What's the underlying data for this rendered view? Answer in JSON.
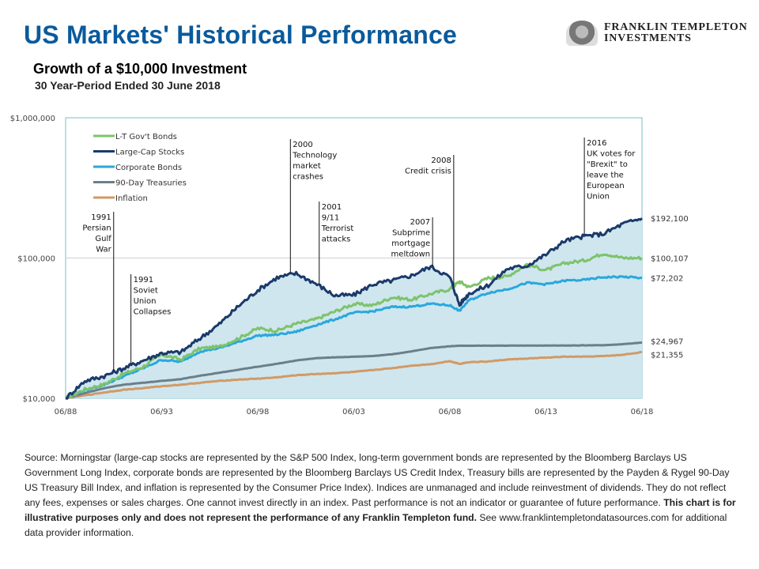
{
  "header": {
    "title": "US Markets' Historical Performance",
    "subtitle": "Growth  of a $10,000 Investment",
    "period": "30 Year-Period Ended 30 June 2018",
    "logo_line1": "FRANKLIN TEMPLETON",
    "logo_line2": "INVESTMENTS"
  },
  "chart_data": {
    "type": "line",
    "title": "Growth of a $10,000 Investment",
    "xlabel": "",
    "ylabel": "",
    "yscale": "log",
    "ylim": [
      10000,
      1000000
    ],
    "xlim": [
      1988.5,
      2018.5
    ],
    "yticks": [
      {
        "value": 10000,
        "label": "$10,000"
      },
      {
        "value": 100000,
        "label": "$100,000"
      },
      {
        "value": 1000000,
        "label": "$1,000,000"
      }
    ],
    "xticks": [
      {
        "value": 1988.5,
        "label": "06/88"
      },
      {
        "value": 1993.5,
        "label": "06/93"
      },
      {
        "value": 1998.5,
        "label": "06/98"
      },
      {
        "value": 2003.5,
        "label": "06/03"
      },
      {
        "value": 2008.5,
        "label": "06/08"
      },
      {
        "value": 2013.5,
        "label": "06/13"
      },
      {
        "value": 2018.5,
        "label": "06/18"
      }
    ],
    "grid": "horizontal at $100,000",
    "legend_position": "top-left",
    "shaded_area_under": "Large-Cap Stocks",
    "x": [
      1988.5,
      1989.5,
      1990.5,
      1991.5,
      1992.5,
      1993.5,
      1994.5,
      1995.5,
      1996.5,
      1997.5,
      1998.5,
      1999.5,
      2000.5,
      2001.5,
      2002.5,
      2003.5,
      2004.5,
      2005.5,
      2006.5,
      2007.5,
      2008.5,
      2009.0,
      2009.5,
      2010.5,
      2011.5,
      2012.5,
      2013.5,
      2014.5,
      2015.5,
      2016.5,
      2017.5,
      2018.5
    ],
    "series": [
      {
        "name": "L-T Gov't Bonds",
        "color": "#7dc36b",
        "values": [
          10000,
          11600,
          12600,
          14900,
          16700,
          20500,
          18900,
          22700,
          23300,
          26800,
          31500,
          30400,
          34000,
          36500,
          41500,
          47000,
          46000,
          52500,
          50500,
          55500,
          60000,
          68000,
          62000,
          72000,
          74000,
          90000,
          82000,
          92000,
          96000,
          108000,
          100000,
          100107
        ]
      },
      {
        "name": "Large-Cap Stocks",
        "color": "#1b3a6b",
        "values": [
          10000,
          13300,
          14400,
          16300,
          18500,
          21000,
          21300,
          26800,
          33800,
          45500,
          59000,
          72500,
          77600,
          66000,
          54000,
          54500,
          65000,
          69000,
          75000,
          87000,
          73000,
          46500,
          56000,
          64000,
          84000,
          88000,
          106000,
          133000,
          143000,
          149000,
          175000,
          192100
        ]
      },
      {
        "name": "Corporate Bonds",
        "color": "#29a8dc",
        "values": [
          10000,
          11400,
          12500,
          14300,
          16300,
          18800,
          18200,
          21600,
          22800,
          25200,
          28000,
          28400,
          29800,
          33200,
          36500,
          40700,
          41700,
          44800,
          45000,
          47200,
          46000,
          42000,
          50000,
          56500,
          60000,
          66500,
          65000,
          69000,
          69800,
          73000,
          73500,
          72202
        ]
      },
      {
        "name": "90-Day Treasuries",
        "color": "#6b7f8a",
        "values": [
          10000,
          10900,
          11800,
          12500,
          12900,
          13300,
          13700,
          14500,
          15200,
          16000,
          16800,
          17600,
          18600,
          19300,
          19600,
          19800,
          20000,
          20600,
          21600,
          22800,
          23500,
          23700,
          23700,
          23700,
          23750,
          23750,
          23800,
          23800,
          23850,
          23900,
          24300,
          24967
        ]
      },
      {
        "name": "Inflation",
        "color": "#d19a66",
        "values": [
          10000,
          10500,
          11000,
          11500,
          11800,
          12200,
          12500,
          12900,
          13300,
          13600,
          13800,
          14100,
          14600,
          14900,
          15100,
          15400,
          15900,
          16400,
          17100,
          17500,
          18400,
          17600,
          18100,
          18300,
          18900,
          19200,
          19500,
          19800,
          19800,
          20000,
          20400,
          21355
        ]
      }
    ],
    "end_labels": [
      {
        "series": "Large-Cap Stocks",
        "label": "$192,100"
      },
      {
        "series": "L-T Gov't Bonds",
        "label": "$100,107"
      },
      {
        "series": "Corporate Bonds",
        "label": "$72,202"
      },
      {
        "series": "90-Day Treasuries",
        "label": "$24,967"
      },
      {
        "series": "Inflation",
        "label": "$21,355"
      }
    ],
    "annotations": [
      {
        "x": 1991.0,
        "lines": [
          "1991",
          "Persian",
          "Gulf ",
          "War"
        ],
        "align": "end"
      },
      {
        "x": 1991.9,
        "lines": [
          "1991",
          "Soviet",
          "Union",
          "Collapses"
        ],
        "align": "start"
      },
      {
        "x": 2000.2,
        "lines": [
          "2000",
          "Technology",
          "market",
          "crashes"
        ],
        "align": "start"
      },
      {
        "x": 2001.7,
        "lines": [
          "2001",
          "9/11",
          "Terrorist",
          "attacks"
        ],
        "align": "start"
      },
      {
        "x": 2007.6,
        "lines": [
          "2007",
          "Subprime",
          "mortgage",
          "meltdown"
        ],
        "align": "end"
      },
      {
        "x": 2008.7,
        "lines": [
          "2008",
          "Credit crisis"
        ],
        "align": "end"
      },
      {
        "x": 2015.5,
        "lines": [
          "2016",
          "UK votes for",
          "\"Brexit\" to",
          "leave the",
          "European",
          " Union"
        ],
        "align": "start"
      }
    ]
  },
  "footer": {
    "source_text": "Source: Morningstar (large-cap stocks are represented by the S&P 500 Index, long-term government bonds are represented by the Bloomberg Barclays US Government Long Index, corporate bonds are represented by the Bloomberg Barclays US Credit Index, Treasury bills are represented by the Payden & Rygel 90-Day US Treasury Bill Index, and inflation is represented by the Consumer Price Index). Indices are unmanaged and include reinvestment of dividends. They do not reflect any fees, expenses or sales charges. One cannot invest directly in an index. Past performance is not an indicator or guarantee of future performance. ",
    "bold_text": "This chart is for illustrative purposes only and does not represent the performance of any Franklin Templeton fund.",
    "trailing_text": " See www.franklintempletondatasources.com for additional data provider information."
  }
}
